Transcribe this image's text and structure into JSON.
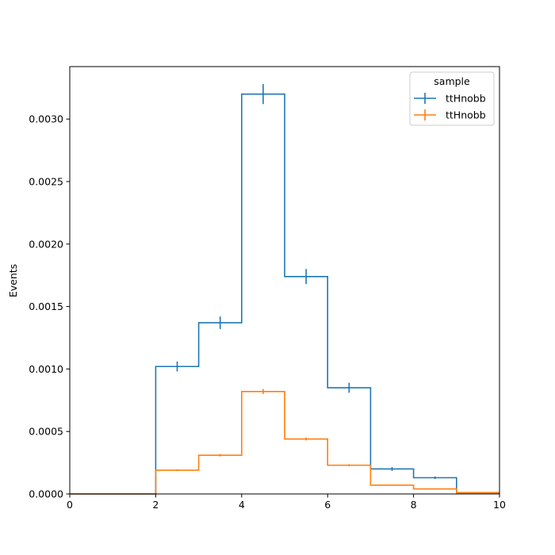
{
  "chart_data": {
    "type": "histogram-step",
    "title": "",
    "xlabel": "",
    "ylabel": "Events",
    "xlim": [
      0,
      10
    ],
    "ylim": [
      0,
      0.00342
    ],
    "bin_edges": [
      0,
      1,
      2,
      3,
      4,
      5,
      6,
      7,
      8,
      9,
      10
    ],
    "x_ticks": [
      0,
      2,
      4,
      6,
      8,
      10
    ],
    "x_tick_labels": [
      "0",
      "2",
      "4",
      "6",
      "8",
      "10"
    ],
    "y_ticks": [
      0,
      0.0005,
      0.001,
      0.0015,
      0.002,
      0.0025,
      0.003
    ],
    "y_tick_labels": [
      "0.0000",
      "0.0005",
      "0.0010",
      "0.0015",
      "0.0020",
      "0.0025",
      "0.0030"
    ],
    "grid": false,
    "legend": {
      "title": "sample",
      "placement": "top-right"
    },
    "series": [
      {
        "name": "ttHnobb",
        "color": "#1f77b4",
        "values": [
          0,
          0,
          0.00102,
          0.00137,
          0.0032,
          0.00174,
          0.00085,
          0.0002,
          0.00013,
          1e-05
        ],
        "errors": [
          0,
          0,
          4e-05,
          5e-05,
          8e-05,
          6e-05,
          4e-05,
          1.5e-05,
          1e-05,
          3e-06
        ]
      },
      {
        "name": "ttHnobb",
        "color": "#ff7f0e",
        "values": [
          0,
          0,
          0.00019,
          0.00031,
          0.00082,
          0.00044,
          0.00023,
          7e-05,
          4e-05,
          1e-05
        ],
        "errors": [
          0,
          0,
          7e-06,
          1e-05,
          2e-05,
          1.2e-05,
          8e-06,
          3e-06,
          2e-06,
          1e-06
        ],
        "error_bins_shown": [
          2,
          3,
          4,
          5,
          6
        ]
      }
    ]
  }
}
